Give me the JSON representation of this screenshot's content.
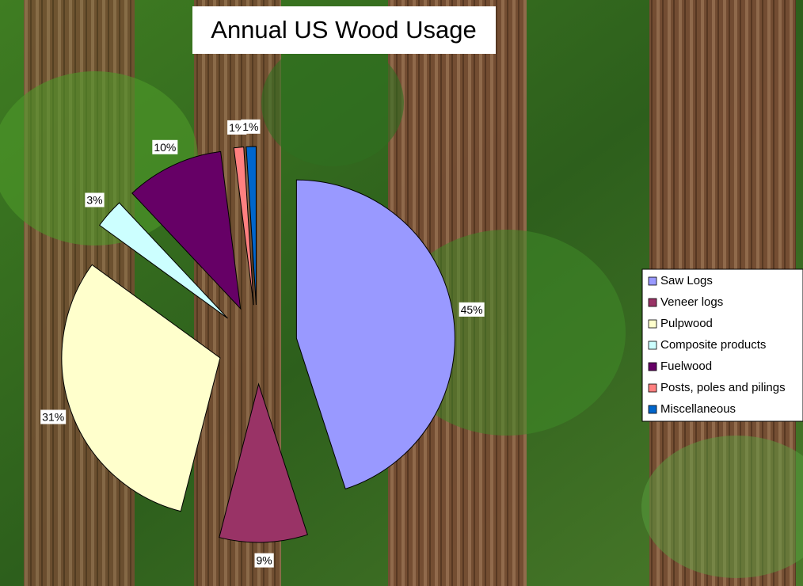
{
  "chart_data": {
    "type": "pie",
    "title": "Annual US Wood Usage",
    "categories": [
      "Saw Logs",
      "Veneer logs",
      "Pulpwood",
      "Composite products",
      "Fuelwood",
      "Posts, poles and pilings",
      "Miscellaneous"
    ],
    "values": [
      45,
      9,
      31,
      3,
      10,
      1,
      1
    ],
    "value_labels": [
      "45%",
      "9%",
      "31%",
      "3%",
      "10%",
      "1%",
      "1%"
    ],
    "colors": [
      "#9999ff",
      "#993366",
      "#ffffcc",
      "#ccffff",
      "#660066",
      "#ff8080",
      "#0066cc"
    ]
  }
}
